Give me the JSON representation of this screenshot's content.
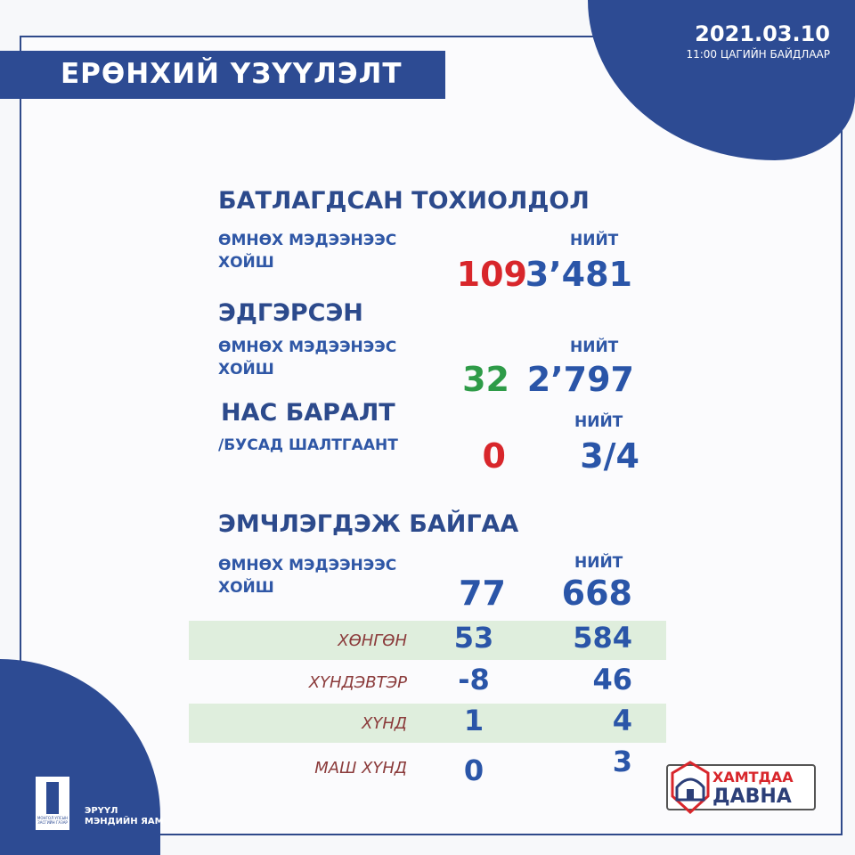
{
  "header": {
    "title": "ЕРӨНХИЙ ҮЗҮҮЛЭЛТ",
    "date": "2021.03.10",
    "time_note": "11:00 ЦАГИЙН БАЙДЛААР"
  },
  "confirmed": {
    "title": "БАТЛАГДСАН ТОХИОЛДОЛ",
    "since_line1": "ӨМНӨХ МЭДЭЭНЭЭС",
    "since_line2": "ХОЙШ",
    "total_label": "НИЙТ",
    "new": "109",
    "total": "3’481"
  },
  "recovered": {
    "title": "ЭДГЭРСЭН",
    "since_line1": "ӨМНӨХ МЭДЭЭНЭЭС",
    "since_line2": "ХОЙШ",
    "total_label": "НИЙТ",
    "new": "32",
    "total": "2’797"
  },
  "deaths": {
    "title": "НАС БАРАЛТ",
    "subtitle": "/БУСАД ШАЛТГААНТ",
    "total_label": "НИЙТ",
    "new": "0",
    "total": "3/4"
  },
  "treatment": {
    "title": "ЭМЧЛЭГДЭЖ БАЙГАА",
    "since_line1": "ӨМНӨХ МЭДЭЭНЭЭС",
    "since_line2": "ХОЙШ",
    "total_label": "НИЙТ",
    "new": "77",
    "total": "668",
    "rows": [
      {
        "label": "ХӨНГӨН",
        "new": "53",
        "total": "584"
      },
      {
        "label": "ХҮНДЭВТЭР",
        "new": "-8",
        "total": "46"
      },
      {
        "label": "ХҮНД",
        "new": "1",
        "total": "4"
      },
      {
        "label": "МАШ ХҮНД",
        "new": "0",
        "total": "3"
      }
    ]
  },
  "footer": {
    "ministry_line1": "ЭРҮҮЛ",
    "ministry_line2": "МЭНДИЙН ЯАМ",
    "gov_seal": "МОНГОЛ УЛСЫН ЗАСГИЙН ГАЗАР",
    "campaign_line1": "ХАМТДАА",
    "campaign_line2": "ДАВНА"
  },
  "colors": {
    "brand_blue": "#2d4b93",
    "new_red": "#d8262b",
    "new_green": "#2e9b48",
    "row_highlight": "#dfeedd"
  }
}
